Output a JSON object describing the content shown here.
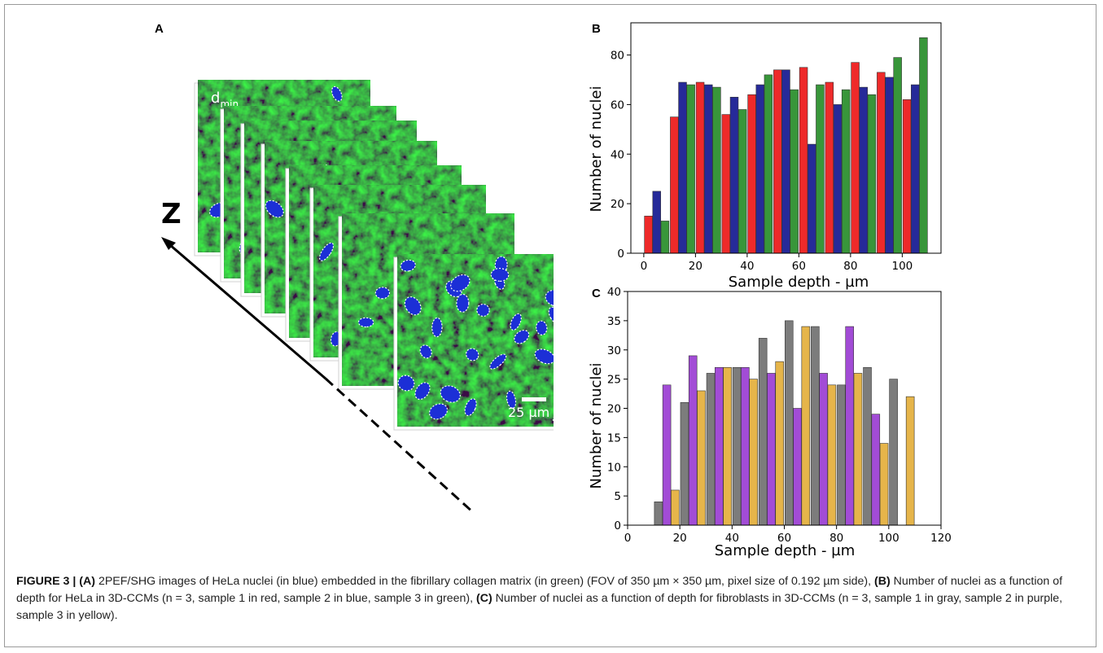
{
  "panels": {
    "a": "A",
    "b": "B",
    "c": "C"
  },
  "panel_a": {
    "axis_label": "Z",
    "distance_label": "d",
    "distance_subscript": "min",
    "scale_bar": "25 µm",
    "colors": {
      "collagen": "#1f7a1f",
      "nuclei": "#1c2fd6"
    }
  },
  "caption": {
    "figure_label": "FIGURE 3 |",
    "part_a_label": "(A)",
    "part_a_text": " 2PEF/SHG images of HeLa nuclei (in blue) embedded in the fibrillary collagen matrix (in green) (FOV of 350 µm × 350 µm, pixel size of 0.192 µm side), ",
    "part_b_label": "(B)",
    "part_b_text": " Number of nuclei as a function of depth for HeLa in 3D-CCMs (n = 3, sample 1 in red, sample 2 in blue, sample 3 in green), ",
    "part_c_label": "(C)",
    "part_c_text": " Number of nuclei as a function of depth for fibroblasts in 3D-CCMs (n = 3, sample 1 in gray, sample 2 in purple, sample 3 in yellow)."
  },
  "chart_data": [
    {
      "type": "bar",
      "panel": "B",
      "xlabel": "Sample depth - µm",
      "ylabel": "Number of nuclei",
      "xlim": [
        -5,
        115
      ],
      "ylim": [
        0,
        93
      ],
      "xticks": [
        0,
        20,
        40,
        60,
        80,
        100
      ],
      "yticks": [
        0,
        20,
        40,
        60,
        80
      ],
      "bar_width": 3.1,
      "categories": [
        5,
        15,
        25,
        35,
        45,
        55,
        65,
        75,
        85,
        95,
        105
      ],
      "series": [
        {
          "color": "#ee2a2a",
          "offset": -3.2,
          "values": [
            15,
            55,
            69,
            56,
            64,
            74,
            75,
            69,
            77,
            73,
            62
          ]
        },
        {
          "color": "#262a99",
          "offset": 0,
          "values": [
            25,
            69,
            68,
            63,
            68,
            74,
            44,
            60,
            67,
            71,
            68
          ]
        },
        {
          "color": "#38963a",
          "offset": 3.2,
          "values": [
            13,
            68,
            67,
            58,
            72,
            66,
            68,
            66,
            64,
            79,
            87
          ]
        }
      ]
    },
    {
      "type": "bar",
      "panel": "C",
      "xlabel": "Sample depth - µm",
      "ylabel": "Number of nuclei",
      "xlim": [
        0,
        120
      ],
      "ylim": [
        0,
        40
      ],
      "xticks": [
        0,
        20,
        40,
        60,
        80,
        100,
        120
      ],
      "yticks": [
        0,
        5,
        10,
        15,
        20,
        25,
        30,
        35,
        40
      ],
      "bar_width": 3.1,
      "categories": [
        15,
        25,
        35,
        45,
        55,
        65,
        75,
        85,
        95,
        105
      ],
      "series": [
        {
          "color": "#7c7c7c",
          "offset": -3.2,
          "values": [
            4,
            21,
            26,
            27,
            32,
            35,
            34,
            24,
            27,
            25
          ]
        },
        {
          "color": "#a24cd6",
          "offset": 0,
          "values": [
            24,
            29,
            27,
            27,
            26,
            20,
            26,
            34,
            19,
            null
          ]
        },
        {
          "color": "#e6b54a",
          "offset": 3.2,
          "values": [
            6,
            23,
            27,
            25,
            28,
            34,
            24,
            26,
            14,
            22
          ]
        }
      ]
    }
  ]
}
